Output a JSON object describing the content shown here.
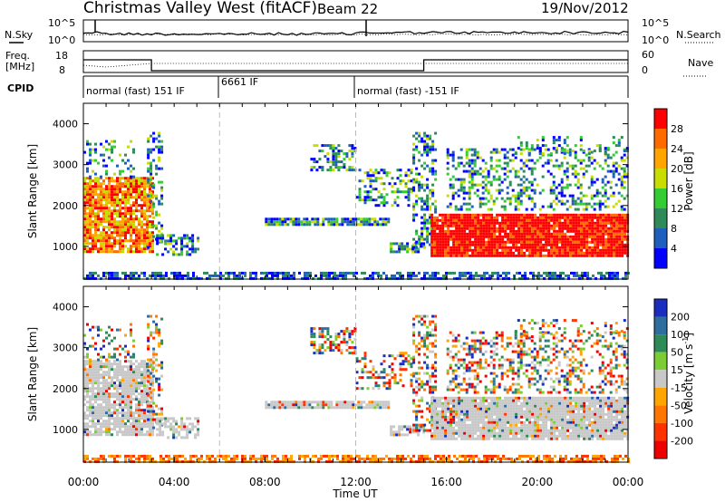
{
  "header": {
    "title": "Christmas Valley West (fitACF)",
    "beam": "Beam 22",
    "date": "19/Nov/2012"
  },
  "status_panels": {
    "nsky_label": "N.Sky",
    "nsearch_label": "N.Search",
    "freq_label_1": "Freq.",
    "freq_label_2": "[MHz]",
    "nave_label": "Nave",
    "cpid_label": "CPID",
    "noise_ticks": [
      "10^5",
      "10^0"
    ],
    "freq_ticks": [
      "18",
      "8"
    ],
    "nave_ticks": [
      "60",
      "0"
    ],
    "cpid_segments": [
      {
        "label": "normal (fast) 151 IF",
        "start_h": 0,
        "end_h": 6
      },
      {
        "label": "6661 IF",
        "start_h": 6,
        "end_h": 12
      },
      {
        "label": "normal (fast) -151 IF",
        "start_h": 12,
        "end_h": 24
      }
    ],
    "freq_steps": [
      {
        "start_h": 0,
        "end_h": 3,
        "level": 16
      },
      {
        "start_h": 3,
        "end_h": 15,
        "level": 10
      },
      {
        "start_h": 15,
        "end_h": 24,
        "level": 16
      }
    ]
  },
  "chart_data": [
    {
      "type": "heatmap",
      "panel": "power",
      "ylabel": "Slant Range [km]",
      "colorbar_label": "Power [dB]",
      "colorbar_ticks": [
        "28",
        "24",
        "20",
        "16",
        "12",
        "8",
        "4"
      ],
      "colorbar_colors": [
        "#ff0000",
        "#ff6a00",
        "#ffa500",
        "#c8dc00",
        "#33cc33",
        "#2e8b57",
        "#1e5fbe",
        "#0000ff"
      ],
      "ylim": [
        200,
        4500
      ],
      "y_ticks": [
        "4000",
        "3000",
        "2000",
        "1000"
      ],
      "xlim_hours": [
        0,
        24
      ],
      "x_ticks": [
        "00:00",
        "04:00",
        "08:00",
        "12:00",
        "16:00",
        "20:00",
        "00:00"
      ],
      "xlabel": "Time UT"
    },
    {
      "type": "heatmap",
      "panel": "velocity",
      "ylabel": "Slant Range [km]",
      "colorbar_label": "Velocity [m s^-1]",
      "colorbar_ticks": [
        "200",
        "100",
        "50",
        "15",
        "-15",
        "-50",
        "-100",
        "-200"
      ],
      "colorbar_colors": [
        "#1a2dbe",
        "#2e6e9e",
        "#2e8b57",
        "#7ccc33",
        "#c8c8c8",
        "#ffa500",
        "#ff7700",
        "#ff3300",
        "#ee0000"
      ],
      "ylim": [
        200,
        4500
      ],
      "y_ticks": [
        "4000",
        "3000",
        "2000",
        "1000"
      ],
      "xlim_hours": [
        0,
        24
      ],
      "x_ticks": [
        "00:00",
        "04:00",
        "08:00",
        "12:00",
        "16:00",
        "20:00",
        "00:00"
      ],
      "xlabel": "Time UT"
    }
  ]
}
